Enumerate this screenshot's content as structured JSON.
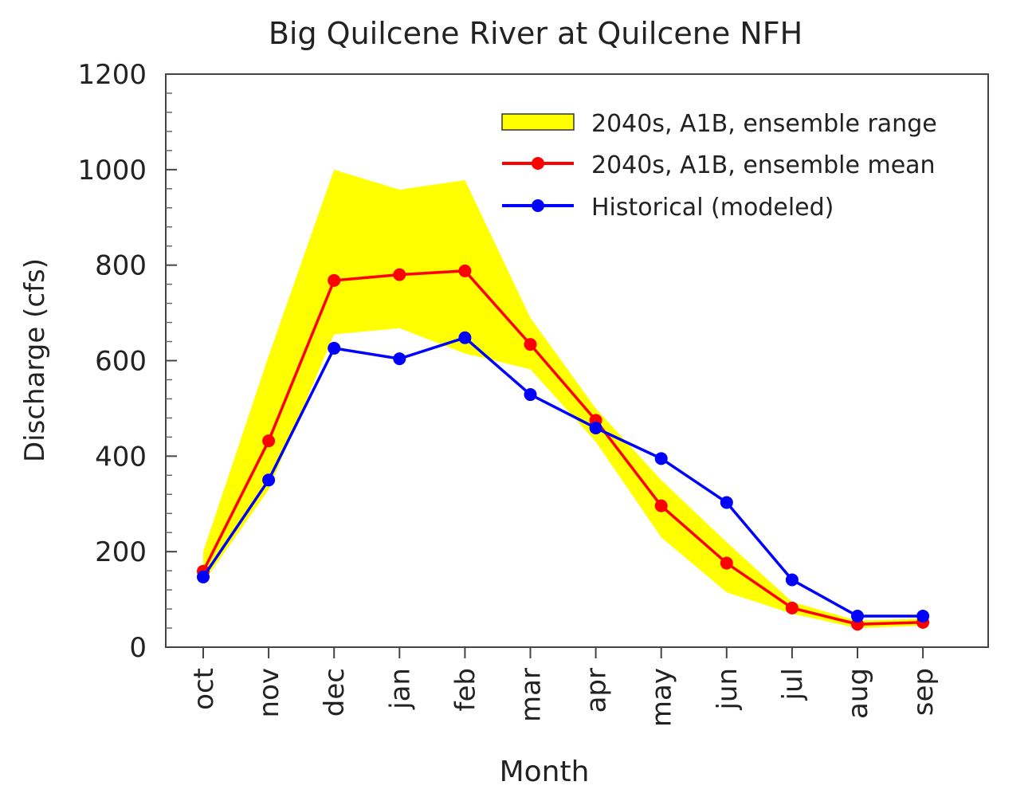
{
  "chart_data": {
    "type": "line",
    "title": "Big Quilcene River at Quilcene NFH",
    "xlabel": "Month",
    "ylabel": "Discharge (cfs)",
    "ylim": [
      0,
      1200
    ],
    "yticks": [
      "0",
      "200",
      "400",
      "600",
      "800",
      "1000",
      "1200"
    ],
    "categories": [
      "oct",
      "nov",
      "dec",
      "jan",
      "feb",
      "mar",
      "apr",
      "may",
      "jun",
      "jul",
      "aug",
      "sep"
    ],
    "grid": false,
    "legend_position": "top-right",
    "band": {
      "name": "2040s, A1B, ensemble range",
      "color": "#ffff00",
      "upper": [
        200,
        610,
        1000,
        958,
        978,
        690,
        500,
        350,
        220,
        95,
        55,
        60
      ],
      "lower": [
        135,
        330,
        655,
        668,
        615,
        582,
        430,
        230,
        115,
        70,
        40,
        45
      ]
    },
    "series": [
      {
        "name": "2040s, A1B, ensemble mean",
        "color": "#ff0000",
        "values": [
          159,
          432,
          768,
          780,
          788,
          634,
          475,
          296,
          176,
          82,
          48,
          52
        ]
      },
      {
        "name": "Historical (modeled)",
        "color": "#0000ff",
        "values": [
          147,
          350,
          626,
          604,
          648,
          529,
          459,
          395,
          303,
          141,
          65,
          65
        ]
      }
    ]
  }
}
